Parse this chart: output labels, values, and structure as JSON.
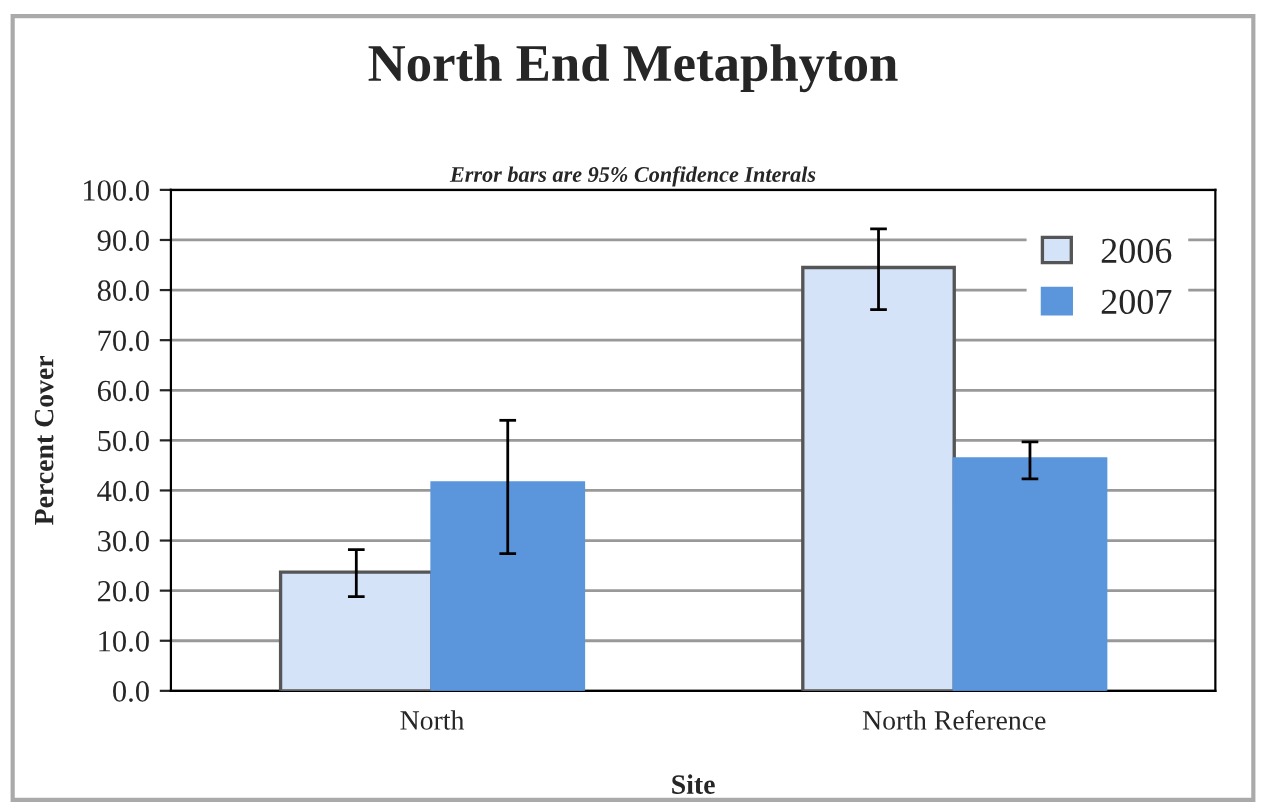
{
  "chart_data": {
    "type": "bar",
    "title": "North End Metaphyton",
    "subtitle": "Error bars are 95% Confidence Interals",
    "xlabel": "Site",
    "ylabel": "Percent Cover",
    "categories": [
      "North",
      "North Reference"
    ],
    "series": [
      {
        "name": "2006",
        "color": "#d4e3f8",
        "values": [
          23.7,
          84.5
        ],
        "errors": [
          [
            18.8,
            28.2
          ],
          [
            76.1,
            92.2
          ]
        ]
      },
      {
        "name": "2007",
        "color": "#5b96dd",
        "values": [
          41.5,
          46.3
        ],
        "errors": [
          [
            27.4,
            54.0
          ],
          [
            42.3,
            49.7
          ]
        ]
      }
    ],
    "ylim": [
      0,
      100
    ],
    "yticks": [
      {
        "value": 0,
        "label": "0.0"
      },
      {
        "value": 10,
        "label": "10.0"
      },
      {
        "value": 20,
        "label": "20.0"
      },
      {
        "value": 30,
        "label": "30.0"
      },
      {
        "value": 40,
        "label": "40.0"
      },
      {
        "value": 50,
        "label": "50.0"
      },
      {
        "value": 60,
        "label": "60.0"
      },
      {
        "value": 70,
        "label": "70.0"
      },
      {
        "value": 80,
        "label": "80.0"
      },
      {
        "value": 90,
        "label": "90.0"
      },
      {
        "value": 100,
        "label": "100.0"
      }
    ],
    "grid": "y",
    "legend": "top right"
  }
}
